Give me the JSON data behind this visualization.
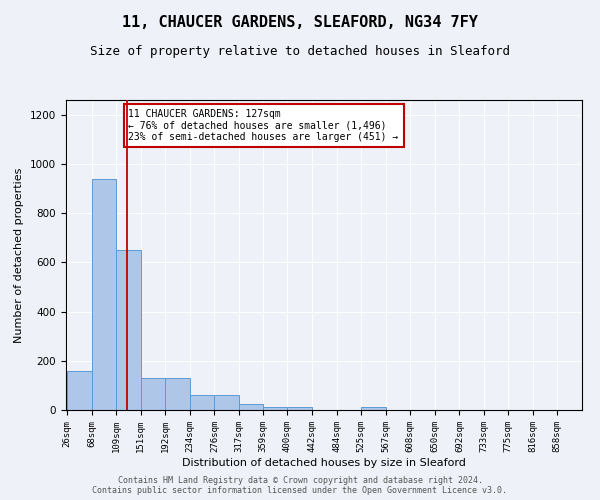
{
  "title1": "11, CHAUCER GARDENS, SLEAFORD, NG34 7FY",
  "title2": "Size of property relative to detached houses in Sleaford",
  "xlabel": "Distribution of detached houses by size in Sleaford",
  "ylabel": "Number of detached properties",
  "bar_edges": [
    26,
    68,
    109,
    151,
    192,
    234,
    276,
    317,
    359,
    400,
    442,
    484,
    525,
    567,
    608,
    650,
    692,
    733,
    775,
    816,
    858
  ],
  "bar_heights": [
    160,
    940,
    650,
    130,
    130,
    60,
    60,
    25,
    12,
    12,
    0,
    0,
    12,
    0,
    0,
    0,
    0,
    0,
    0,
    0,
    0
  ],
  "bar_color": "#aec6e8",
  "bar_edge_color": "#5b9bd5",
  "bg_color": "#eef2f8",
  "grid_color": "#ffffff",
  "property_line_x": 127,
  "property_line_color": "#c00000",
  "annotation_text": "11 CHAUCER GARDENS: 127sqm\n← 76% of detached houses are smaller (1,496)\n23% of semi-detached houses are larger (451) →",
  "annotation_box_color": "#ffffff",
  "annotation_box_edge_color": "#c00000",
  "footnote": "Contains HM Land Registry data © Crown copyright and database right 2024.\nContains public sector information licensed under the Open Government Licence v3.0.",
  "ylim": [
    0,
    1260
  ],
  "title1_fontsize": 11,
  "title2_fontsize": 9,
  "ylabel_fontsize": 8,
  "xlabel_fontsize": 8,
  "tick_fontsize": 6.5,
  "footnote_fontsize": 6
}
